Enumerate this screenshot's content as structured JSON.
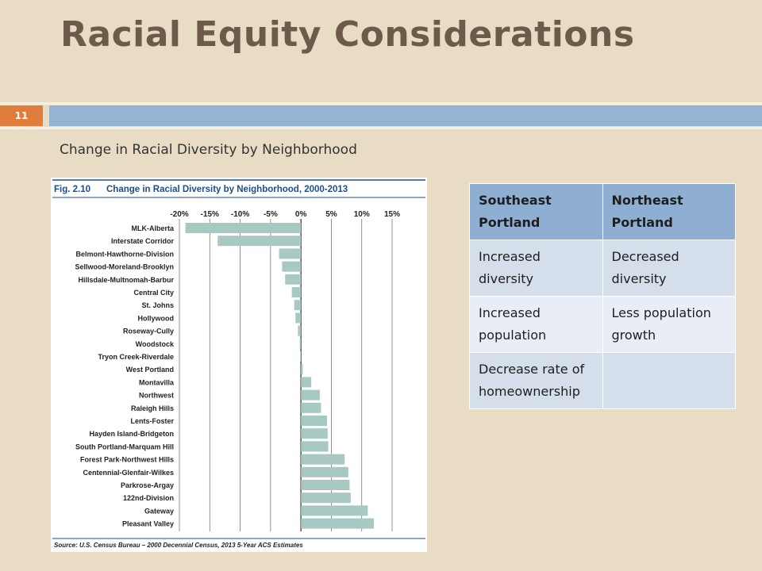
{
  "slide": {
    "title": "Racial Equity Considerations",
    "slide_number": "11",
    "subtitle": "Change in Racial Diversity by Neighborhood"
  },
  "chart_data": {
    "type": "bar",
    "orientation": "horizontal",
    "fig_label": "Fig. 2.10",
    "title": "Change in Racial Diversity by Neighborhood, 2000-2013",
    "xlim": [
      -0.2,
      0.15
    ],
    "x_tick_labels": [
      "-20%",
      "-15%",
      "-10%",
      "-5%",
      "0%",
      "5%",
      "10%",
      "15%"
    ],
    "x_ticks": [
      -0.2,
      -0.15,
      -0.1,
      -0.05,
      0,
      0.05,
      0.1,
      0.15
    ],
    "grid": true,
    "categories": [
      "MLK-Alberta",
      "Interstate Corridor",
      "Belmont-Hawthorne-Division",
      "Sellwood-Moreland-Brooklyn",
      "Hillsdale-Multnomah-Barbur",
      "Central City",
      "St. Johns",
      "Hollywood",
      "Roseway-Cully",
      "Woodstock",
      "Tryon Creek-Riverdale",
      "West Portland",
      "Montavilla",
      "Northwest",
      "Raleigh Hills",
      "Lents-Foster",
      "Hayden Island-Bridgeton",
      "South Portland-Marquam Hill",
      "Forest Park-Northwest Hills",
      "Centennial-Glenfair-Wilkes",
      "Parkrose-Argay",
      "122nd-Division",
      "Gateway",
      "Pleasant Valley"
    ],
    "values": [
      -0.19,
      -0.137,
      -0.036,
      -0.031,
      -0.026,
      -0.015,
      -0.011,
      -0.009,
      -0.005,
      -0.002,
      -0.001,
      0.003,
      0.017,
      0.031,
      0.033,
      0.043,
      0.044,
      0.045,
      0.072,
      0.078,
      0.08,
      0.082,
      0.11,
      0.12
    ],
    "bar_color": "#a8c8c4",
    "source": "Source: U.S. Census Bureau – 2000 Decennial Census, 2013 5-Year ACS Estimates"
  },
  "table": {
    "headers": [
      "Southeast Portland",
      "Northeast Portland"
    ],
    "rows": [
      [
        "Increased diversity",
        "Decreased diversity"
      ],
      [
        "Increased population",
        "Less population growth"
      ],
      [
        "Decrease rate of homeownership",
        ""
      ]
    ]
  }
}
